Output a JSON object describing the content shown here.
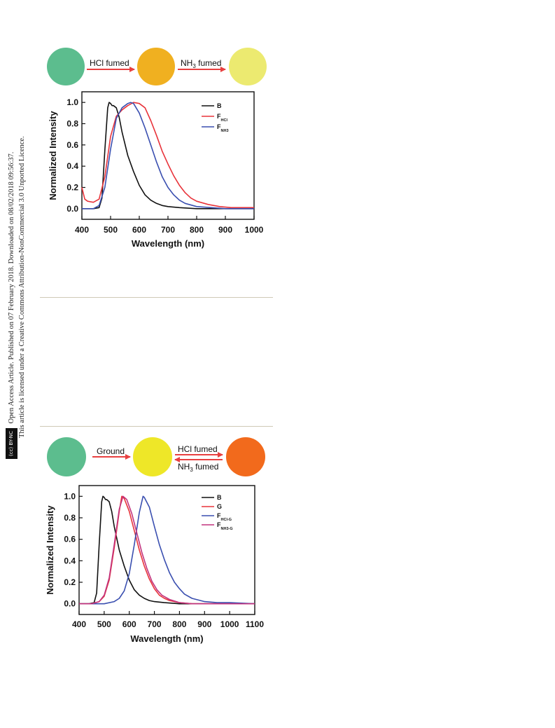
{
  "side_note": {
    "badge": "(cc) BY-NC",
    "line1": "Open Access Article. Published on 07 February 2018. Downloaded on 08/02/2018 09:56:37.",
    "line2": "This article is licensed under a Creative Commons Attribution-NonCommercial 3.0 Unported Licence."
  },
  "scheme_top": {
    "arrow1": "HCl fumed",
    "arrow2_main": "NH",
    "arrow2_sub": "3",
    "arrow2_tail": " fumed",
    "circle_colors": [
      "#5cbd8e",
      "#f0b020",
      "#ecea70"
    ]
  },
  "scheme_bottom": {
    "arrow1": "Ground",
    "arrow2": "HCl fumed",
    "arrow3_main": "NH",
    "arrow3_sub": "3",
    "arrow3_tail": " fumed",
    "circle_colors": [
      "#5cbd8e",
      "#eee728",
      "#f26a1c"
    ]
  },
  "colors": {
    "black": "#111111",
    "red": "#e8333a",
    "blue": "#3a4fb0",
    "magenta": "#c2337e",
    "arrow": "#e84040"
  },
  "chart_data": [
    {
      "type": "line",
      "xlabel": "Wavelength (nm)",
      "ylabel": "Normalized Intensity",
      "xlim": [
        400,
        1000
      ],
      "ylim": [
        -0.1,
        1.1
      ],
      "xticks": [
        400,
        500,
        600,
        700,
        800,
        900,
        1000
      ],
      "yticks": [
        0.0,
        0.2,
        0.4,
        0.6,
        0.8,
        1.0
      ],
      "legend_position": "top-right",
      "series": [
        {
          "name": "B",
          "color": "#111111",
          "x": [
            400,
            440,
            460,
            470,
            480,
            490,
            495,
            500,
            505,
            510,
            520,
            530,
            540,
            560,
            580,
            600,
            620,
            640,
            660,
            680,
            700,
            740,
            800,
            1000
          ],
          "y": [
            0.0,
            0.0,
            0.01,
            0.1,
            0.55,
            0.95,
            1.0,
            0.99,
            0.97,
            0.97,
            0.95,
            0.86,
            0.72,
            0.5,
            0.35,
            0.22,
            0.13,
            0.08,
            0.05,
            0.03,
            0.02,
            0.01,
            0.0,
            0.0
          ]
        },
        {
          "name": "F",
          "sub": "HCl",
          "color": "#e8333a",
          "x": [
            400,
            410,
            420,
            440,
            460,
            480,
            500,
            520,
            540,
            560,
            580,
            600,
            620,
            640,
            660,
            680,
            700,
            720,
            740,
            760,
            780,
            800,
            840,
            880,
            920,
            1000
          ],
          "y": [
            0.2,
            0.09,
            0.07,
            0.06,
            0.09,
            0.3,
            0.68,
            0.87,
            0.93,
            0.97,
            1.0,
            0.99,
            0.95,
            0.83,
            0.69,
            0.54,
            0.42,
            0.31,
            0.22,
            0.15,
            0.1,
            0.07,
            0.04,
            0.02,
            0.01,
            0.01
          ]
        },
        {
          "name": "F",
          "sub": "NH3",
          "color": "#3a4fb0",
          "x": [
            400,
            440,
            460,
            480,
            500,
            520,
            540,
            560,
            570,
            580,
            600,
            620,
            640,
            660,
            680,
            700,
            720,
            740,
            760,
            800,
            850,
            900,
            1000
          ],
          "y": [
            0.0,
            0.0,
            0.03,
            0.2,
            0.56,
            0.85,
            0.95,
            0.99,
            1.0,
            0.99,
            0.9,
            0.76,
            0.6,
            0.44,
            0.3,
            0.2,
            0.13,
            0.08,
            0.05,
            0.02,
            0.01,
            0.0,
            0.0
          ]
        }
      ]
    },
    {
      "type": "line",
      "xlabel": "Wavelength (nm)",
      "ylabel": "Normalized Intensity",
      "xlim": [
        400,
        1100
      ],
      "ylim": [
        -0.1,
        1.1
      ],
      "xticks": [
        400,
        500,
        600,
        700,
        800,
        900,
        1000,
        1100
      ],
      "yticks": [
        0.0,
        0.2,
        0.4,
        0.6,
        0.8,
        1.0
      ],
      "legend_position": "top-right",
      "series": [
        {
          "name": "B",
          "color": "#111111",
          "x": [
            400,
            440,
            460,
            470,
            480,
            490,
            495,
            500,
            505,
            510,
            520,
            530,
            540,
            560,
            580,
            600,
            620,
            640,
            660,
            680,
            700,
            740,
            800,
            1100
          ],
          "y": [
            0.0,
            0.0,
            0.01,
            0.1,
            0.55,
            0.95,
            1.0,
            0.99,
            0.97,
            0.97,
            0.95,
            0.86,
            0.72,
            0.5,
            0.35,
            0.22,
            0.13,
            0.08,
            0.05,
            0.03,
            0.02,
            0.01,
            0.0,
            0.0
          ]
        },
        {
          "name": "G",
          "color": "#e8333a",
          "x": [
            400,
            450,
            480,
            500,
            520,
            540,
            560,
            570,
            580,
            600,
            620,
            640,
            660,
            680,
            700,
            720,
            740,
            760,
            800,
            850,
            900,
            1100
          ],
          "y": [
            0.0,
            0.0,
            0.02,
            0.07,
            0.22,
            0.52,
            0.86,
            1.0,
            0.98,
            0.86,
            0.68,
            0.5,
            0.35,
            0.23,
            0.14,
            0.08,
            0.05,
            0.03,
            0.01,
            0.0,
            0.0,
            0.0
          ]
        },
        {
          "name": "F",
          "sub": "HCl-G",
          "color": "#3a4fb0",
          "x": [
            400,
            500,
            540,
            560,
            580,
            600,
            620,
            640,
            655,
            660,
            680,
            700,
            720,
            740,
            760,
            780,
            800,
            820,
            850,
            900,
            950,
            1000,
            1100
          ],
          "y": [
            0.0,
            0.0,
            0.02,
            0.05,
            0.12,
            0.28,
            0.55,
            0.85,
            1.0,
            0.99,
            0.9,
            0.72,
            0.55,
            0.41,
            0.29,
            0.2,
            0.14,
            0.09,
            0.05,
            0.02,
            0.01,
            0.01,
            0.0
          ]
        },
        {
          "name": "F",
          "sub": "NH3-G",
          "color": "#c2337e",
          "x": [
            400,
            450,
            480,
            500,
            520,
            540,
            560,
            575,
            590,
            610,
            630,
            650,
            670,
            690,
            710,
            730,
            760,
            800,
            850,
            900,
            1100
          ],
          "y": [
            0.0,
            0.0,
            0.02,
            0.08,
            0.24,
            0.55,
            0.88,
            1.0,
            0.97,
            0.84,
            0.66,
            0.48,
            0.33,
            0.21,
            0.13,
            0.08,
            0.04,
            0.01,
            0.0,
            0.0,
            0.0
          ]
        }
      ]
    }
  ]
}
